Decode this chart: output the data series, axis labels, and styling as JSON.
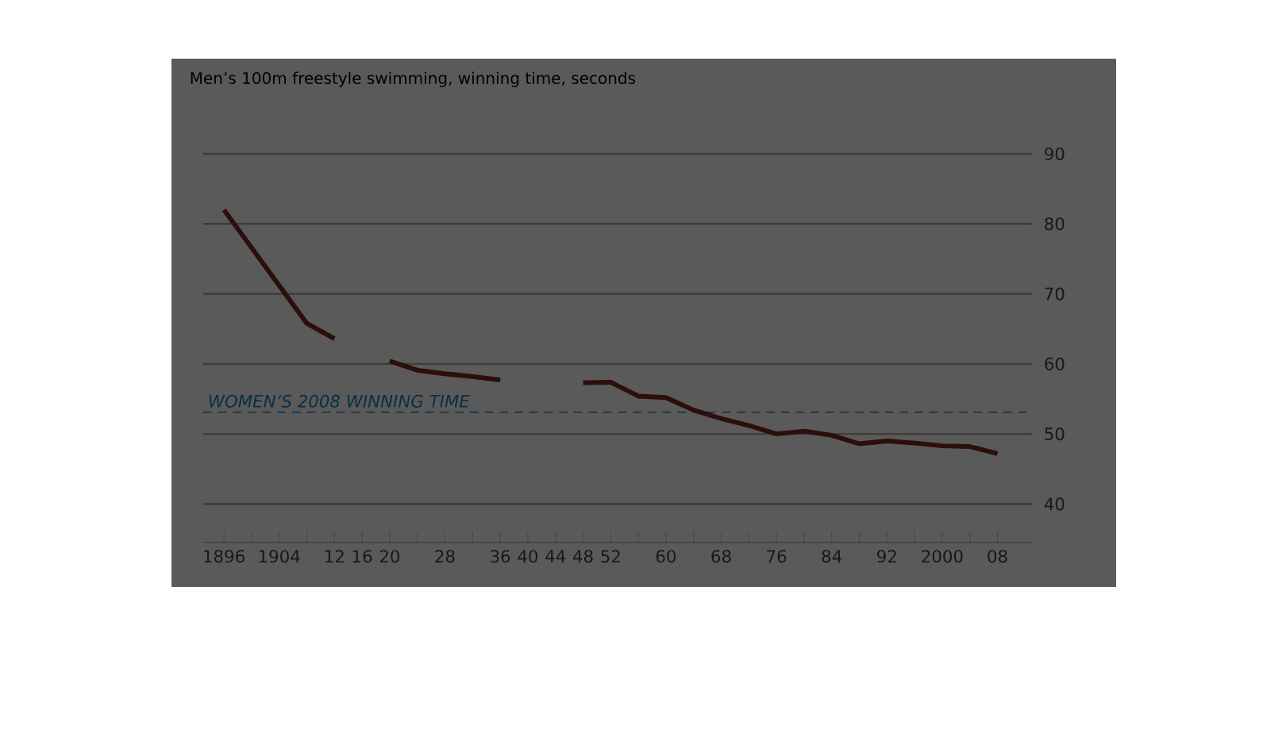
{
  "chart_data": {
    "type": "line",
    "title": "Men’s 100m freestyle swimming, winning time, seconds",
    "x": [
      1896,
      1908,
      1912,
      1916,
      1920,
      1924,
      1928,
      1932,
      1936,
      1940,
      1948,
      1952,
      1956,
      1960,
      1964,
      1968,
      1972,
      1976,
      1980,
      1984,
      1988,
      1992,
      1996,
      2000,
      2004,
      2008
    ],
    "series": [
      {
        "color": "#2a0f0a",
        "values": [
          82.0,
          65.8,
          63.6,
          null,
          60.4,
          59.1,
          58.6,
          58.2,
          57.7,
          null,
          57.3,
          57.4,
          55.4,
          55.2,
          53.4,
          52.2,
          51.2,
          50.0,
          50.4,
          49.8,
          48.6,
          49.0,
          48.7,
          48.3,
          48.2,
          47.2
        ]
      }
    ],
    "xlim": [
      1893,
      2013
    ],
    "ylim": [
      34.5,
      90
    ],
    "xticks": [
      {
        "value": 1896,
        "label": "1896"
      },
      {
        "value": 1900,
        "label": null
      },
      {
        "value": 1904,
        "label": "1904"
      },
      {
        "value": 1908,
        "label": null
      },
      {
        "value": 1912,
        "label": "12"
      },
      {
        "value": 1916,
        "label": "16"
      },
      {
        "value": 1920,
        "label": "20"
      },
      {
        "value": 1924,
        "label": null
      },
      {
        "value": 1928,
        "label": "28"
      },
      {
        "value": 1932,
        "label": null
      },
      {
        "value": 1936,
        "label": "36"
      },
      {
        "value": 1940,
        "label": "40"
      },
      {
        "value": 1944,
        "label": "44"
      },
      {
        "value": 1948,
        "label": "48"
      },
      {
        "value": 1952,
        "label": "52"
      },
      {
        "value": 1956,
        "label": null
      },
      {
        "value": 1960,
        "label": "60"
      },
      {
        "value": 1964,
        "label": null
      },
      {
        "value": 1968,
        "label": "68"
      },
      {
        "value": 1972,
        "label": null
      },
      {
        "value": 1976,
        "label": "76"
      },
      {
        "value": 1980,
        "label": null
      },
      {
        "value": 1984,
        "label": "84"
      },
      {
        "value": 1988,
        "label": null
      },
      {
        "value": 1992,
        "label": "92"
      },
      {
        "value": 1996,
        "label": null
      },
      {
        "value": 2000,
        "label": "2000"
      },
      {
        "value": 2004,
        "label": null
      },
      {
        "value": 2008,
        "label": "08"
      }
    ],
    "yticks": [
      40,
      50,
      60,
      70,
      80,
      90
    ],
    "grid": "y",
    "marker": "none",
    "line_style": "solid",
    "ref_lines": [
      {
        "axis": "y",
        "value": 53.1,
        "label": "WOMEN’S 2008 WINNING TIME",
        "color": "#0a2f45",
        "line_style": "dashed"
      }
    ]
  }
}
